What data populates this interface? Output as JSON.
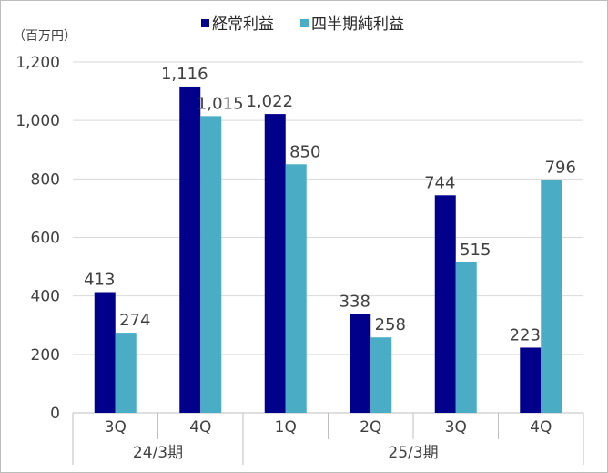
{
  "chart_data": {
    "type": "bar",
    "unit_label": "（百万円）",
    "y_ticks": [
      "0",
      "200",
      "400",
      "600",
      "800",
      "1,000",
      "1,200"
    ],
    "ylim": [
      0,
      1200
    ],
    "grid": true,
    "legend_position": "top",
    "groups": [
      {
        "label": "24/3期",
        "categories": [
          "3Q",
          "4Q"
        ]
      },
      {
        "label": "25/3期",
        "categories": [
          "1Q",
          "2Q",
          "3Q",
          "4Q"
        ]
      }
    ],
    "categories": [
      "3Q",
      "4Q",
      "1Q",
      "2Q",
      "3Q",
      "4Q"
    ],
    "series": [
      {
        "name": "経常利益",
        "color": "#00008b",
        "values": [
          413,
          1116,
          1022,
          338,
          744,
          223
        ],
        "labels": [
          "413",
          "1,116",
          "1,022",
          "338",
          "744",
          "223"
        ]
      },
      {
        "name": "四半期純利益",
        "color": "#4bacc6",
        "values": [
          274,
          1015,
          850,
          258,
          515,
          796
        ],
        "labels": [
          "274",
          "1,015",
          "850",
          "258",
          "515",
          "796"
        ]
      }
    ]
  }
}
